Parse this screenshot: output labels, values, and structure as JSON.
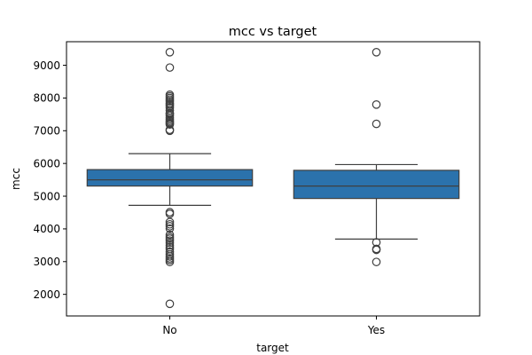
{
  "chart_data": {
    "type": "box",
    "title": "mcc vs target",
    "xlabel": "target",
    "ylabel": "mcc",
    "categories": [
      "No",
      "Yes"
    ],
    "ylim": [
      1340,
      9720
    ],
    "yticks": [
      2000,
      3000,
      4000,
      5000,
      6000,
      7000,
      8000,
      9000
    ],
    "grid": false,
    "legend": "none",
    "box_color": "#2b72ac",
    "series": [
      {
        "category": "No",
        "whisker_low": 4720,
        "q1": 5310,
        "median": 5500,
        "q3": 5812,
        "whisker_high": 6300,
        "outliers": [
          1711,
          2990,
          3050,
          3100,
          3160,
          3220,
          3300,
          3380,
          3440,
          3500,
          3570,
          3640,
          3700,
          3750,
          3820,
          4010,
          4080,
          4140,
          4210,
          4460,
          4510,
          7000,
          7030,
          7190,
          7220,
          7260,
          7300,
          7350,
          7400,
          7460,
          7510,
          7540,
          7620,
          7700,
          7750,
          7800,
          7840,
          7900,
          7950,
          8000,
          8050,
          8100,
          8930,
          9400
        ]
      },
      {
        "category": "Yes",
        "whisker_low": 3690,
        "q1": 4930,
        "median": 5310,
        "q3": 5790,
        "whisker_high": 5965,
        "outliers": [
          2990,
          3360,
          3390,
          3590,
          7210,
          7800,
          9400
        ]
      }
    ]
  }
}
